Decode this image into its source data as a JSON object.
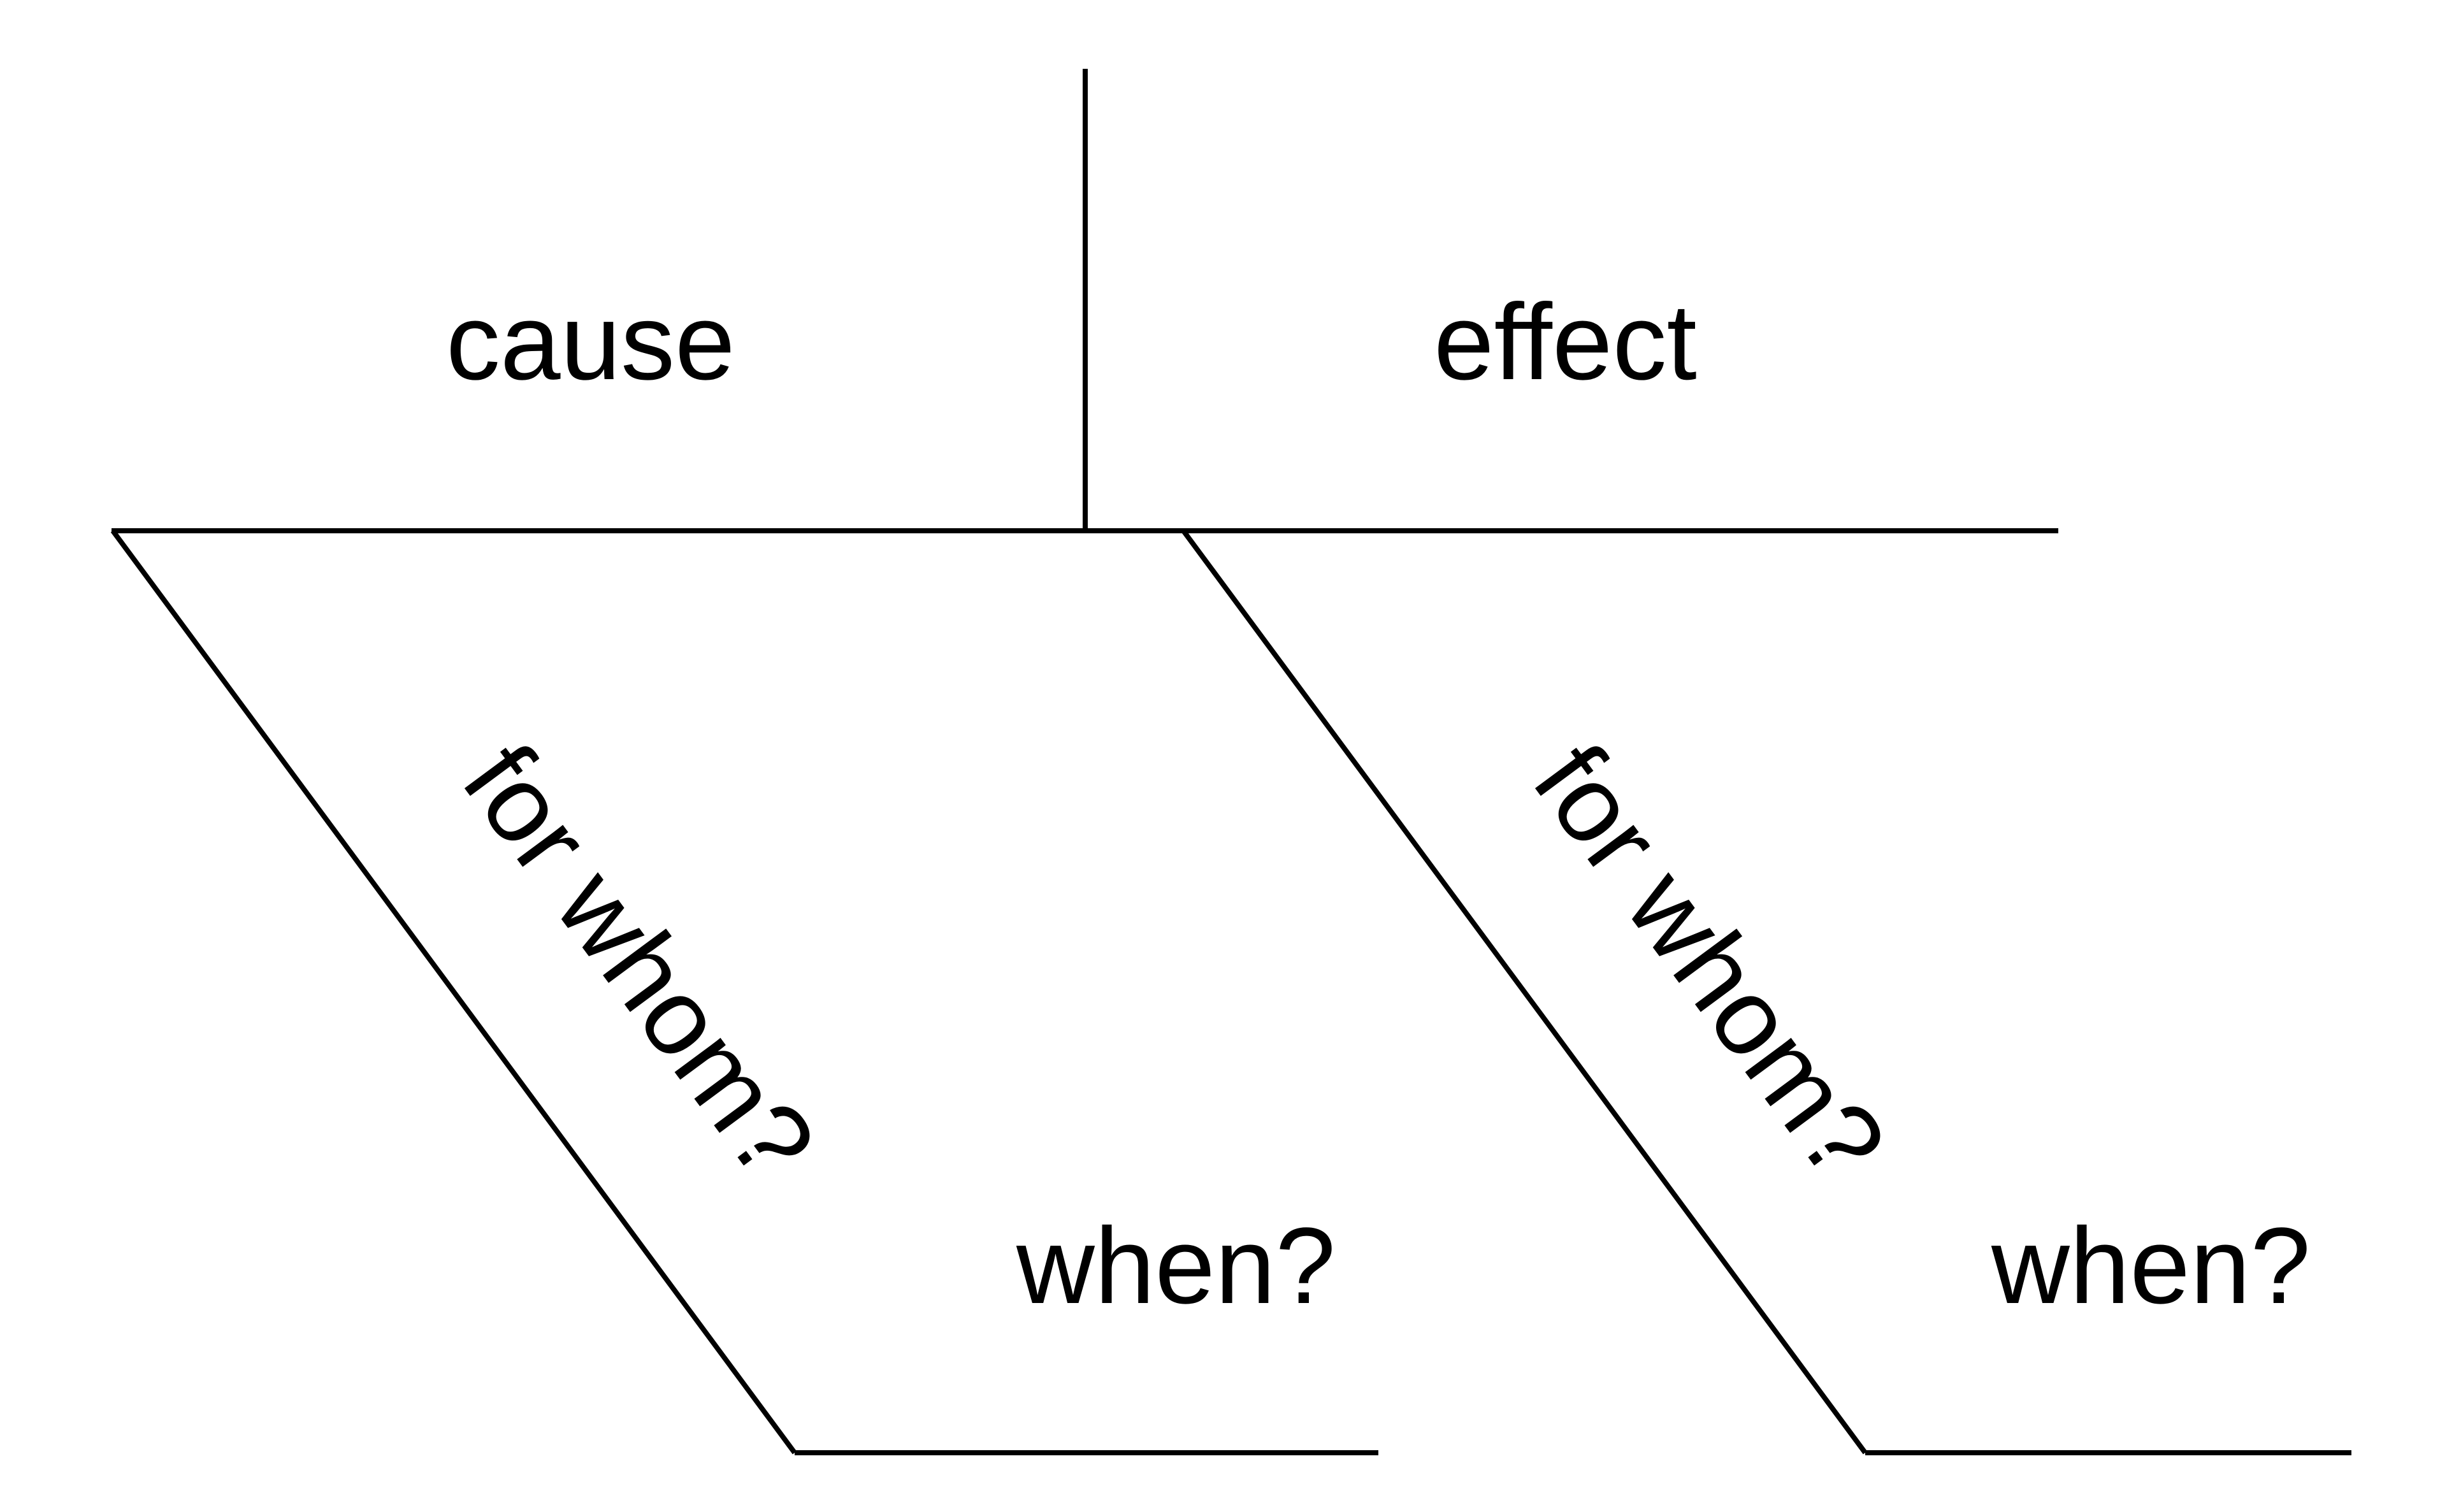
{
  "diagram": {
    "labels": {
      "cause": "cause",
      "effect": "effect",
      "for_whom_left": "for whom?",
      "for_whom_right": "for whom?",
      "when_left": "when?",
      "when_right": "when?"
    },
    "colors": {
      "ink": "#000000",
      "background": "#ffffff"
    }
  }
}
